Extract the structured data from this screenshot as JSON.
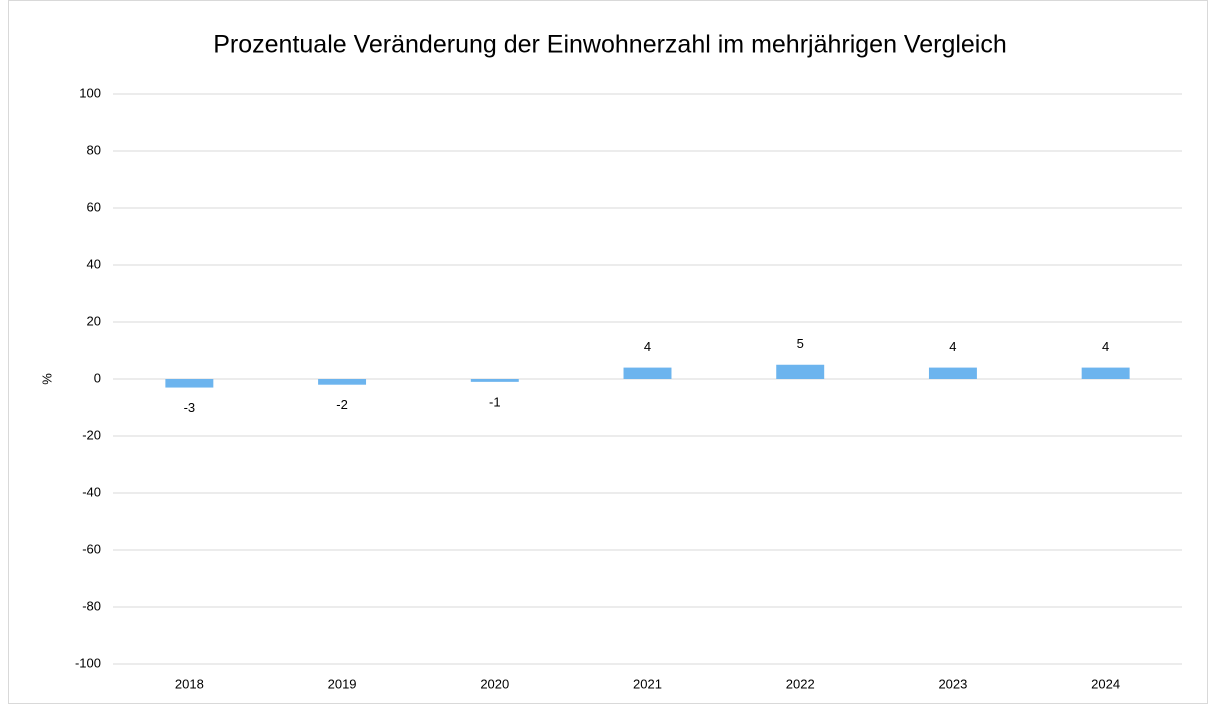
{
  "chart_data": {
    "type": "bar",
    "title": "Prozentuale Veränderung der Einwohnerzahl im mehrjährigen Vergleich",
    "ylabel": "%",
    "categories": [
      "2018",
      "2019",
      "2020",
      "2021",
      "2022",
      "2023",
      "2024"
    ],
    "values": [
      -3,
      -2,
      -1,
      4,
      5,
      4,
      4
    ],
    "color": "#6cb4ee",
    "ylim": [
      -100,
      100
    ],
    "yticks": [
      -100,
      -80,
      -60,
      -40,
      -20,
      0,
      20,
      40,
      60,
      80,
      100
    ],
    "grid": true,
    "data_labels": true
  }
}
